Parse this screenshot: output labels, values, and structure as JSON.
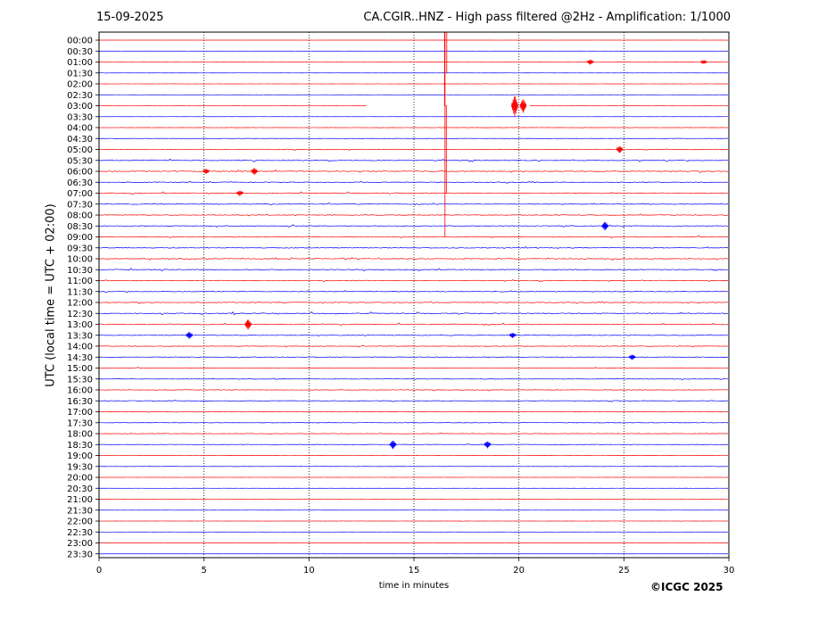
{
  "header": {
    "date": "15-09-2025",
    "title": "CA.CGIR..HNZ - High pass filtered @2Hz - Amplification: 1/1000"
  },
  "footer": {
    "copyright": "©ICGC 2025"
  },
  "colors": {
    "trace_a": "#ff0000",
    "trace_b": "#0000ff",
    "grid": "#000000"
  },
  "chart_data": {
    "type": "line",
    "title": "CA.CGIR..HNZ - High pass filtered @2Hz - Amplification: 1/1000",
    "xlabel": "time in minutes",
    "ylabel": "UTC (local time = UTC + 02:00)",
    "xlim": [
      0,
      30
    ],
    "x_ticks": [
      0,
      5,
      10,
      15,
      20,
      25,
      30
    ],
    "grid": "vertical dotted lines at 5-minute intervals",
    "row_labels": [
      "00:00",
      "00:30",
      "01:00",
      "01:30",
      "02:00",
      "02:30",
      "03:00",
      "03:30",
      "04:00",
      "04:30",
      "05:00",
      "05:30",
      "06:00",
      "06:30",
      "07:00",
      "07:30",
      "08:00",
      "08:30",
      "09:00",
      "09:30",
      "10:00",
      "10:30",
      "11:00",
      "11:30",
      "12:00",
      "12:30",
      "13:00",
      "13:30",
      "14:00",
      "14:30",
      "15:00",
      "15:30",
      "16:00",
      "16:30",
      "17:00",
      "17:30",
      "18:00",
      "18:30",
      "19:00",
      "19:30",
      "20:00",
      "20:30",
      "21:00",
      "21:30",
      "22:00",
      "22:30",
      "23:00",
      "23:30"
    ],
    "row_colors": [
      "red",
      "blue",
      "red",
      "blue",
      "red",
      "blue",
      "red",
      "blue",
      "red",
      "blue",
      "red",
      "blue",
      "red",
      "blue",
      "red",
      "blue",
      "red",
      "blue",
      "red",
      "blue",
      "red",
      "blue",
      "red",
      "blue",
      "red",
      "blue",
      "red",
      "blue",
      "red",
      "blue",
      "red",
      "blue",
      "red",
      "blue",
      "red",
      "blue",
      "red",
      "blue",
      "red",
      "blue",
      "red",
      "blue",
      "red",
      "blue",
      "red",
      "blue",
      "red",
      "blue"
    ],
    "activity": [
      0.05,
      0.05,
      0.1,
      0.1,
      0.1,
      0.1,
      0.1,
      0.1,
      0.15,
      0.2,
      0.35,
      0.5,
      0.55,
      0.45,
      0.5,
      0.45,
      0.45,
      0.45,
      0.45,
      0.45,
      0.5,
      0.5,
      0.4,
      0.4,
      0.45,
      0.55,
      0.55,
      0.4,
      0.35,
      0.35,
      0.3,
      0.3,
      0.35,
      0.35,
      0.25,
      0.25,
      0.3,
      0.3,
      0.15,
      0.15,
      0.1,
      0.1,
      0.1,
      0.1,
      0.1,
      0.1,
      0.05,
      0.05
    ],
    "events": [
      {
        "row": 2,
        "minute": 23.4,
        "amp": 3
      },
      {
        "row": 2,
        "minute": 28.8,
        "amp": 2
      },
      {
        "row": 6,
        "minute": 19.8,
        "amp": 12
      },
      {
        "row": 6,
        "minute": 20.2,
        "amp": 8
      },
      {
        "row": 10,
        "minute": 24.8,
        "amp": 4
      },
      {
        "row": 12,
        "minute": 5.1,
        "amp": 3
      },
      {
        "row": 12,
        "minute": 7.4,
        "amp": 4
      },
      {
        "row": 14,
        "minute": 6.7,
        "amp": 3
      },
      {
        "row": 17,
        "minute": 24.1,
        "amp": 5
      },
      {
        "row": 26,
        "minute": 7.1,
        "amp": 6
      },
      {
        "row": 27,
        "minute": 4.3,
        "amp": 4
      },
      {
        "row": 27,
        "minute": 19.7,
        "amp": 3
      },
      {
        "row": 29,
        "minute": 25.4,
        "amp": 3
      },
      {
        "row": 37,
        "minute": 14.0,
        "amp": 5
      },
      {
        "row": 37,
        "minute": 18.5,
        "amp": 4
      }
    ],
    "gap": {
      "row": 6,
      "from_minute": 12.8,
      "to_minute": 20.5
    },
    "spike": {
      "from_row": 0,
      "to_row": 18,
      "minute": 16.5
    }
  }
}
